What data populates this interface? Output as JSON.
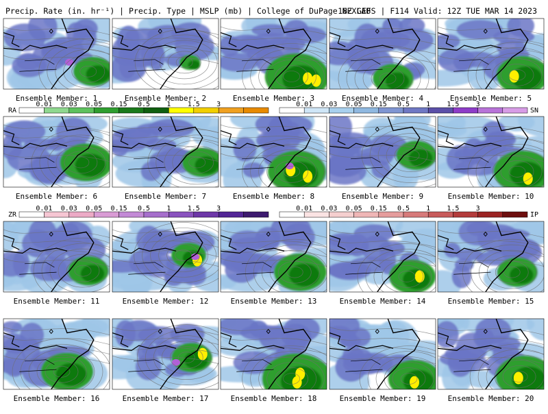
{
  "header": {
    "left_title": "Precip. Rate (in. hr⁻¹) | Precip. Type | MSLP (mb) | College of DuPage NEXLAB",
    "right_title": "18Z GEFS | F114 Valid: 12Z TUE MAR 14 2023"
  },
  "panels": [
    {
      "label": "Ensemble Member: 1"
    },
    {
      "label": "Ensemble Member: 2"
    },
    {
      "label": "Ensemble Member: 3"
    },
    {
      "label": "Ensemble Member: 4"
    },
    {
      "label": "Ensemble Member: 5"
    },
    {
      "label": "Ensemble Member: 6"
    },
    {
      "label": "Ensemble Member: 7"
    },
    {
      "label": "Ensemble Member: 8"
    },
    {
      "label": "Ensemble Member: 9"
    },
    {
      "label": "Ensemble Member: 10"
    },
    {
      "label": "Ensemble Member: 11"
    },
    {
      "label": "Ensemble Member: 12"
    },
    {
      "label": "Ensemble Member: 13"
    },
    {
      "label": "Ensemble Member: 14"
    },
    {
      "label": "Ensemble Member: 15"
    },
    {
      "label": "Ensemble Member: 16"
    },
    {
      "label": "Ensemble Member: 17"
    },
    {
      "label": "Ensemble Member: 18"
    },
    {
      "label": "Ensemble Member: 19"
    },
    {
      "label": "Ensemble Member: 20"
    }
  ],
  "legends": {
    "rain": {
      "code": "RA",
      "ticks": [
        "0.01",
        "0.03",
        "0.05",
        "0.15",
        "0.5",
        "1",
        "1.5",
        "3"
      ],
      "colors": [
        "#ffffff",
        "#8fd88f",
        "#5ec25e",
        "#2f9e2f",
        "#1a7a1a",
        "#0f5f0f",
        "#ffff00",
        "#f2cf00",
        "#f0a020",
        "#e88a00"
      ]
    },
    "snow": {
      "code": "SN",
      "ticks": [
        "0.01",
        "0.03",
        "0.05",
        "0.15",
        "0.5",
        "1",
        "1.5",
        "3"
      ],
      "colors": [
        "#ffffff",
        "#cfe6f7",
        "#a8d0ee",
        "#8fb8e0",
        "#7f95d2",
        "#6f78c4",
        "#5b4fa8",
        "#8e3cc8",
        "#b873d8",
        "#d79ce6"
      ]
    },
    "freezing_rain": {
      "code": "ZR",
      "ticks": [
        "0.01",
        "0.03",
        "0.05",
        "0.15",
        "0.5",
        "1",
        "1.5",
        "3"
      ],
      "colors": [
        "#ffffff",
        "#f6c6d3",
        "#ecaac6",
        "#d99cd5",
        "#c38ad6",
        "#a66fcc",
        "#8a53bf",
        "#6e37a8",
        "#532696",
        "#3d1a6f"
      ]
    },
    "ice_pellets": {
      "code": "IP",
      "ticks": [
        "0.01",
        "0.03",
        "0.05",
        "0.15",
        "0.5",
        "1",
        "1.5",
        "3"
      ],
      "colors": [
        "#ffffff",
        "#fbe3e3",
        "#f5cfcf",
        "#efb6b6",
        "#e59c9c",
        "#d77a7a",
        "#c85b5b",
        "#b33b3b",
        "#9b2424",
        "#6e0f0f"
      ]
    }
  },
  "colors": {
    "snow_blue": "#6b76c6",
    "snow_light": "#9fc7e7",
    "snow_purple": "#7b6fd6",
    "rain_green": "#2f9e2f",
    "rain_dark": "#117a11",
    "rain_yellow": "#ffef00",
    "rain_orange": "#f0a020",
    "ice_purple": "#b160d6",
    "land": "#ffffff",
    "coast": "#000000",
    "isobar": "#6e6e6e"
  },
  "icons": {
    "high_marker": "diamond-icon"
  }
}
